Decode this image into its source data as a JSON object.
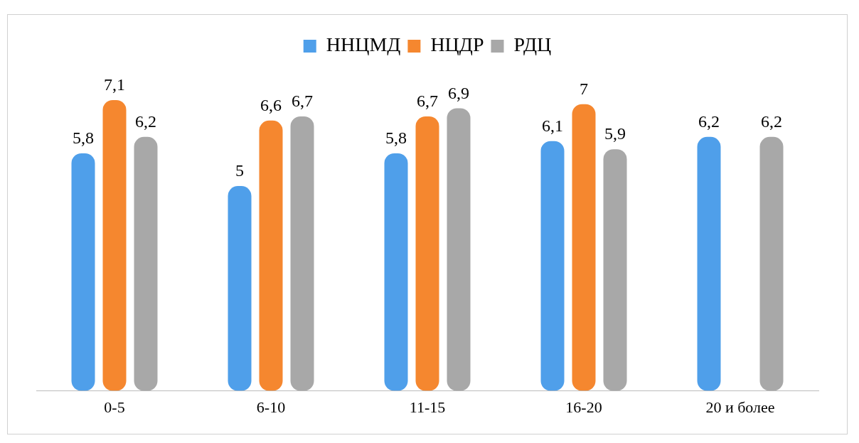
{
  "chart_data": {
    "type": "bar",
    "categories": [
      "0-5",
      "6-10",
      "11-15",
      "16-20",
      "20 и более"
    ],
    "series": [
      {
        "name": "ННЦМД",
        "color": "#4f9fea",
        "values": [
          5.8,
          5,
          5.8,
          6.1,
          6.2
        ],
        "value_labels": [
          "5,8",
          "5",
          "5,8",
          "6,1",
          "6,2"
        ]
      },
      {
        "name": "НЦДР",
        "color": "#f5872f",
        "values": [
          7.1,
          6.6,
          6.7,
          7,
          null
        ],
        "value_labels": [
          "7,1",
          "6,6",
          "6,7",
          "7",
          null
        ]
      },
      {
        "name": "РДЦ",
        "color": "#a8a8a8",
        "values": [
          6.2,
          6.7,
          6.9,
          5.9,
          6.2
        ],
        "value_labels": [
          "6,2",
          "6,7",
          "6,9",
          "5,9",
          "6,2"
        ]
      }
    ],
    "legend": "top",
    "grid": false,
    "tick_labels": "x"
  }
}
